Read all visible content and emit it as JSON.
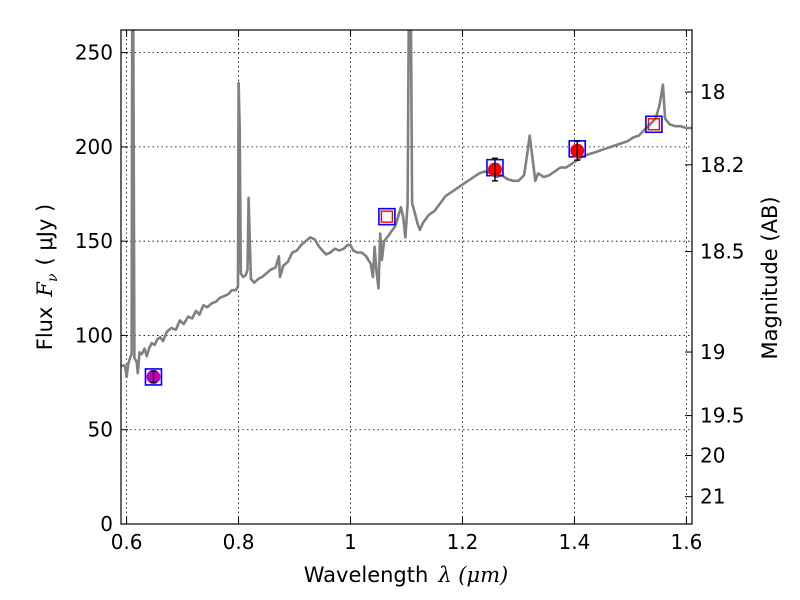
{
  "chart_data": {
    "type": "line",
    "xlabel": "Wavelength",
    "xlabel_symbol": "λ (μm)",
    "ylabel": "Flux",
    "ylabel_symbol": "F",
    "ylabel_subscript": "ν",
    "ylabel_unit": "( μJy )",
    "ylabel_right": "Magnitude (AB)",
    "xlim": [
      0.59,
      1.61
    ],
    "ylim": [
      0,
      262
    ],
    "grid": true,
    "x_ticks": [
      0.6,
      0.8,
      1.0,
      1.2,
      1.4,
      1.6
    ],
    "x_tick_labels": [
      "0.6",
      "0.8",
      "1",
      "1.2",
      "1.4",
      "1.6"
    ],
    "y_ticks": [
      0,
      50,
      100,
      150,
      200,
      250
    ],
    "y_tick_labels": [
      "0",
      "50",
      "100",
      "150",
      "200",
      "250"
    ],
    "mag_ticks": [
      {
        "flux": 229.1,
        "label": "18"
      },
      {
        "flux": 190.5,
        "label": "18.2"
      },
      {
        "flux": 144.5,
        "label": "18.5"
      },
      {
        "flux": 91.2,
        "label": "19"
      },
      {
        "flux": 57.5,
        "label": "19.5"
      },
      {
        "flux": 36.3,
        "label": "20"
      },
      {
        "flux": 14.5,
        "label": "21"
      }
    ],
    "spectrum": {
      "name": "spectrum",
      "color": "#808080",
      "points": [
        [
          0.59,
          84
        ],
        [
          0.597,
          84
        ],
        [
          0.6,
          78
        ],
        [
          0.603,
          85
        ],
        [
          0.606,
          88
        ],
        [
          0.609,
          90
        ],
        [
          0.61,
          262
        ],
        [
          0.612,
          262
        ],
        [
          0.614,
          88
        ],
        [
          0.618,
          86
        ],
        [
          0.62,
          80
        ],
        [
          0.623,
          91
        ],
        [
          0.627,
          90
        ],
        [
          0.632,
          93
        ],
        [
          0.636,
          89
        ],
        [
          0.64,
          93
        ],
        [
          0.645,
          96
        ],
        [
          0.65,
          95
        ],
        [
          0.655,
          98
        ],
        [
          0.66,
          99
        ],
        [
          0.665,
          97
        ],
        [
          0.672,
          102
        ],
        [
          0.68,
          104
        ],
        [
          0.688,
          103
        ],
        [
          0.695,
          108
        ],
        [
          0.702,
          106
        ],
        [
          0.71,
          110
        ],
        [
          0.717,
          109
        ],
        [
          0.724,
          113
        ],
        [
          0.73,
          111
        ],
        [
          0.737,
          116
        ],
        [
          0.744,
          115
        ],
        [
          0.752,
          117
        ],
        [
          0.76,
          118
        ],
        [
          0.767,
          120
        ],
        [
          0.775,
          121
        ],
        [
          0.782,
          122
        ],
        [
          0.788,
          124
        ],
        [
          0.795,
          124
        ],
        [
          0.799,
          126
        ],
        [
          0.8,
          234
        ],
        [
          0.802,
          210
        ],
        [
          0.804,
          133
        ],
        [
          0.808,
          131
        ],
        [
          0.813,
          132
        ],
        [
          0.816,
          135
        ],
        [
          0.818,
          173
        ],
        [
          0.82,
          150
        ],
        [
          0.822,
          130
        ],
        [
          0.828,
          128
        ],
        [
          0.835,
          130
        ],
        [
          0.842,
          131
        ],
        [
          0.85,
          133
        ],
        [
          0.858,
          135
        ],
        [
          0.866,
          136
        ],
        [
          0.872,
          142
        ],
        [
          0.874,
          131
        ],
        [
          0.88,
          137
        ],
        [
          0.888,
          139
        ],
        [
          0.896,
          144
        ],
        [
          0.904,
          145
        ],
        [
          0.912,
          148
        ],
        [
          0.92,
          150
        ],
        [
          0.928,
          152
        ],
        [
          0.936,
          151
        ],
        [
          0.944,
          147
        ],
        [
          0.95,
          145
        ],
        [
          0.956,
          143
        ],
        [
          0.964,
          144
        ],
        [
          0.972,
          146
        ],
        [
          0.98,
          145
        ],
        [
          0.988,
          146
        ],
        [
          0.995,
          148
        ],
        [
          1.0,
          148
        ],
        [
          1.005,
          145
        ],
        [
          1.012,
          144
        ],
        [
          1.02,
          144
        ],
        [
          1.028,
          142
        ],
        [
          1.036,
          138
        ],
        [
          1.04,
          131
        ],
        [
          1.043,
          147
        ],
        [
          1.046,
          135
        ],
        [
          1.05,
          125
        ],
        [
          1.053,
          154
        ],
        [
          1.056,
          140
        ],
        [
          1.06,
          150
        ],
        [
          1.068,
          153
        ],
        [
          1.075,
          156
        ],
        [
          1.08,
          158
        ],
        [
          1.086,
          164
        ],
        [
          1.09,
          168
        ],
        [
          1.094,
          163
        ],
        [
          1.098,
          152
        ],
        [
          1.102,
          170
        ],
        [
          1.104,
          262
        ],
        [
          1.108,
          262
        ],
        [
          1.11,
          170
        ],
        [
          1.114,
          166
        ],
        [
          1.12,
          159
        ],
        [
          1.124,
          156
        ],
        [
          1.13,
          160
        ],
        [
          1.14,
          164
        ],
        [
          1.15,
          166
        ],
        [
          1.16,
          170
        ],
        [
          1.17,
          174
        ],
        [
          1.18,
          176
        ],
        [
          1.19,
          178
        ],
        [
          1.2,
          180
        ],
        [
          1.21,
          182
        ],
        [
          1.22,
          184
        ],
        [
          1.23,
          186
        ],
        [
          1.24,
          187
        ],
        [
          1.25,
          186
        ],
        [
          1.26,
          184
        ],
        [
          1.27,
          185
        ],
        [
          1.28,
          183
        ],
        [
          1.29,
          182
        ],
        [
          1.3,
          182
        ],
        [
          1.31,
          185
        ],
        [
          1.315,
          195
        ],
        [
          1.32,
          206
        ],
        [
          1.325,
          194
        ],
        [
          1.33,
          182
        ],
        [
          1.335,
          186
        ],
        [
          1.345,
          184
        ],
        [
          1.355,
          185
        ],
        [
          1.365,
          187
        ],
        [
          1.375,
          189
        ],
        [
          1.385,
          189
        ],
        [
          1.395,
          191
        ],
        [
          1.405,
          193
        ],
        [
          1.415,
          195
        ],
        [
          1.425,
          196
        ],
        [
          1.435,
          197
        ],
        [
          1.445,
          198
        ],
        [
          1.455,
          199
        ],
        [
          1.465,
          200
        ],
        [
          1.475,
          201
        ],
        [
          1.485,
          202
        ],
        [
          1.495,
          203
        ],
        [
          1.505,
          205
        ],
        [
          1.515,
          206
        ],
        [
          1.525,
          209
        ],
        [
          1.535,
          212
        ],
        [
          1.545,
          215
        ],
        [
          1.552,
          222
        ],
        [
          1.558,
          233
        ],
        [
          1.562,
          215
        ],
        [
          1.57,
          212
        ],
        [
          1.58,
          211
        ],
        [
          1.59,
          211
        ],
        [
          1.6,
          210
        ],
        [
          1.61,
          210
        ]
      ]
    },
    "photometry": [
      {
        "name": "photometry-point-0.65",
        "x": 0.648,
        "y": 78,
        "err": 3,
        "marker": "filled-circle",
        "fill": "#bf00bf"
      },
      {
        "name": "photometry-point-1.26",
        "x": 1.258,
        "y": 188,
        "err": 6,
        "marker": "filled-circle",
        "fill": "#ff0000"
      },
      {
        "name": "photometry-point-1.40",
        "x": 1.405,
        "y": 198,
        "err": 5,
        "marker": "filled-circle",
        "fill": "#ff0000"
      }
    ],
    "model_points": [
      {
        "name": "model-square-0.65",
        "x": 0.648,
        "y": 78
      },
      {
        "name": "model-square-1.06",
        "x": 1.065,
        "y": 163
      },
      {
        "name": "model-square-1.26",
        "x": 1.258,
        "y": 189
      },
      {
        "name": "model-square-1.40",
        "x": 1.405,
        "y": 199
      },
      {
        "name": "model-square-1.54",
        "x": 1.542,
        "y": 212
      }
    ],
    "model_inner_squares": [
      {
        "x": 1.065,
        "y": 163
      },
      {
        "x": 1.542,
        "y": 212
      }
    ],
    "colors": {
      "spectrum": "#808080",
      "outer_square": "#0000ff",
      "inner_square": "#ff0000",
      "error_bar": "#000000"
    }
  }
}
